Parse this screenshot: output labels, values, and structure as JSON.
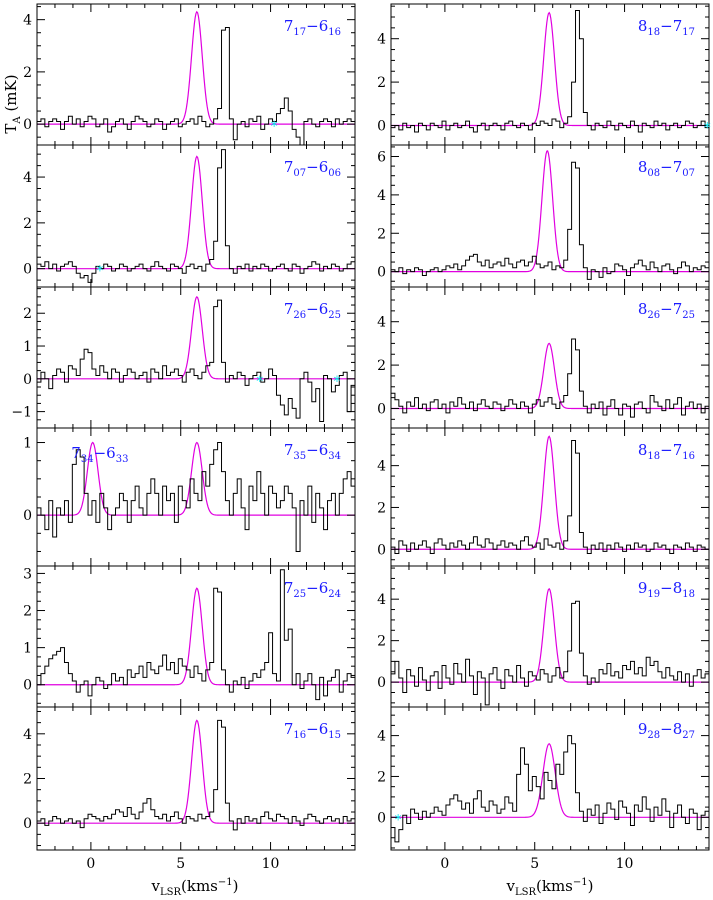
{
  "figure": {
    "y_axis_label": "T",
    "y_axis_label_sub": "A",
    "y_axis_label_unit": " (mK)",
    "x_axis_label": "v",
    "x_axis_label_sub": "LSR",
    "x_axis_label_unit": "(kms",
    "x_axis_label_exp": "−1",
    "x_axis_label_close": ")"
  },
  "colors": {
    "observed": "#000000",
    "fit": "#e000e0",
    "label": "#1a1aff",
    "marker": "#00e5ee"
  },
  "chart_data": [
    {
      "type": "line",
      "transition": {
        "j": "7",
        "js": "17",
        "k": "6",
        "ks": "16"
      },
      "ylim": [
        -0.8,
        4.6
      ],
      "yticks": [
        0,
        2,
        4
      ],
      "xlim": [
        -3,
        14.7
      ],
      "xticks": [
        0,
        5,
        10
      ],
      "fit": {
        "amp": 4.3,
        "center": 5.9,
        "fwhm": 0.7
      },
      "markers": [
        10.2
      ],
      "extra_label": null,
      "y": [
        0.1,
        0.2,
        -0.1,
        0.1,
        0.2,
        0.1,
        -0.2,
        0.1,
        0.3,
        0.0,
        0.2,
        -0.1,
        0.1,
        0.3,
        0.2,
        -0.1,
        0.0,
        0.2,
        -0.3,
        -0.1,
        0.1,
        0.2,
        0.0,
        -0.2,
        0.1,
        0.3,
        0.2,
        0.1,
        -0.1,
        0.0,
        0.2,
        0.1,
        -0.2,
        0.0,
        0.1,
        0.2,
        -0.1,
        0.0,
        0.1,
        0.2,
        0.0,
        0.3,
        0.1,
        -0.1,
        0.0,
        0.2,
        0.6,
        3.6,
        3.7,
        0.2,
        -0.6,
        0.0,
        0.1,
        -0.1,
        0.2,
        0.1,
        0.3,
        -0.2,
        0.0,
        0.2,
        0.1,
        0.4,
        0.6,
        1.0,
        0.5,
        -0.2,
        -0.5,
        -1.0,
        0.1,
        0.2,
        0.0,
        -0.1,
        0.1,
        0.2,
        0.1,
        -0.1,
        0.2,
        0.0,
        0.1,
        0.2,
        0.1
      ]
    },
    {
      "type": "line",
      "transition": {
        "j": "8",
        "js": "18",
        "k": "7",
        "ks": "17"
      },
      "ylim": [
        -0.9,
        5.6
      ],
      "yticks": [
        0,
        2,
        4
      ],
      "xlim": [
        -3,
        14.7
      ],
      "xticks": [
        0,
        5,
        10
      ],
      "fit": {
        "amp": 5.2,
        "center": 5.8,
        "fwhm": 0.7
      },
      "markers": [
        14.6
      ],
      "extra_label": null,
      "y": [
        -0.1,
        0.0,
        -0.2,
        0.1,
        -0.1,
        0.0,
        -0.3,
        0.1,
        0.0,
        -0.2,
        0.1,
        0.0,
        -0.1,
        0.2,
        -0.2,
        0.0,
        0.1,
        -0.1,
        0.0,
        0.2,
        -0.1,
        -0.3,
        0.0,
        0.1,
        -0.2,
        0.0,
        0.1,
        0.0,
        -0.2,
        0.1,
        0.2,
        0.0,
        -0.1,
        0.1,
        0.0,
        -0.2,
        0.1,
        0.0,
        0.2,
        0.1,
        0.0,
        0.3,
        0.2,
        -0.1,
        0.1,
        0.4,
        2.0,
        5.3,
        4.0,
        0.6,
        0.0,
        -0.2,
        0.1,
        0.0,
        -0.1,
        0.2,
        0.0,
        -0.2,
        0.1,
        0.0,
        -0.1,
        0.2,
        0.0,
        -0.3,
        0.1,
        0.0,
        -0.1,
        0.2,
        0.0,
        0.1,
        -0.2,
        0.0,
        0.1,
        -0.1,
        0.0,
        0.2,
        0.1,
        -0.1,
        0.0,
        0.2,
        -0.1
      ]
    },
    {
      "type": "line",
      "transition": {
        "j": "7",
        "js": "07",
        "k": "6",
        "ks": "06"
      },
      "ylim": [
        -0.8,
        5.4
      ],
      "yticks": [
        0,
        2,
        4
      ],
      "xlim": [
        -3,
        14.7
      ],
      "xticks": [
        0,
        5,
        10
      ],
      "fit": {
        "amp": 4.9,
        "center": 5.9,
        "fwhm": 0.7
      },
      "markers": [
        0.5
      ],
      "extra_label": null,
      "y": [
        0.2,
        0.1,
        0.3,
        0.0,
        0.2,
        -0.1,
        0.1,
        0.2,
        0.3,
        0.1,
        -0.2,
        -0.4,
        -0.3,
        -0.6,
        -0.2,
        0.1,
        0.0,
        0.2,
        0.1,
        -0.1,
        0.0,
        0.2,
        0.1,
        -0.1,
        0.0,
        0.1,
        0.2,
        0.0,
        -0.1,
        0.1,
        0.3,
        0.1,
        0.0,
        -0.1,
        0.2,
        0.1,
        0.0,
        -0.2,
        0.1,
        0.2,
        0.0,
        0.1,
        -0.1,
        0.2,
        0.4,
        1.2,
        4.4,
        5.2,
        1.0,
        0.0,
        -0.2,
        0.1,
        0.0,
        0.2,
        -0.1,
        0.1,
        0.0,
        0.2,
        0.1,
        -0.1,
        0.0,
        0.1,
        0.2,
        0.0,
        -0.1,
        0.2,
        0.1,
        -0.2,
        0.0,
        0.1,
        0.3,
        0.2,
        -0.1,
        0.1,
        0.0,
        0.2,
        0.1,
        -0.1,
        0.0,
        0.2,
        0.3
      ]
    },
    {
      "type": "line",
      "transition": {
        "j": "8",
        "js": "08",
        "k": "7",
        "ks": "07"
      },
      "ylim": [
        -0.8,
        6.6
      ],
      "yticks": [
        0,
        2,
        4,
        6
      ],
      "xlim": [
        -3,
        14.7
      ],
      "xticks": [
        0,
        5,
        10
      ],
      "fit": {
        "amp": 6.3,
        "center": 5.7,
        "fwhm": 0.7
      },
      "markers": [],
      "extra_label": null,
      "y": [
        0.1,
        0.0,
        0.2,
        -0.1,
        0.1,
        0.0,
        0.2,
        0.1,
        -0.2,
        0.0,
        0.1,
        0.2,
        0.0,
        0.1,
        0.3,
        0.2,
        0.4,
        0.1,
        0.3,
        0.6,
        0.8,
        0.9,
        0.5,
        0.3,
        0.6,
        0.2,
        0.4,
        0.5,
        0.3,
        0.7,
        0.4,
        0.2,
        0.5,
        0.6,
        0.3,
        0.5,
        0.8,
        0.4,
        0.2,
        0.3,
        0.5,
        0.1,
        0.3,
        0.2,
        0.6,
        2.2,
        5.7,
        5.4,
        1.4,
        0.2,
        -0.4,
        0.1,
        0.0,
        -0.3,
        0.2,
        -0.1,
        0.0,
        0.4,
        0.3,
        0.1,
        -0.2,
        0.2,
        0.4,
        0.6,
        0.3,
        0.1,
        0.5,
        0.2,
        0.0,
        0.3,
        0.4,
        0.1,
        -0.1,
        0.2,
        0.5,
        0.3,
        0.0,
        0.2,
        0.1,
        0.3,
        0.2
      ]
    },
    {
      "type": "line",
      "transition": {
        "j": "7",
        "js": "26",
        "k": "6",
        "ks": "25"
      },
      "ylim": [
        -1.5,
        2.8
      ],
      "yticks": [
        -1,
        0,
        1,
        2
      ],
      "xlim": [
        -3,
        14.7
      ],
      "xticks": [
        0,
        5,
        10
      ],
      "fit": {
        "amp": 2.5,
        "center": 5.9,
        "fwhm": 0.7
      },
      "markers": [
        9.4,
        13.7
      ],
      "extra_label": null,
      "y": [
        -0.1,
        0.2,
        0.0,
        -0.3,
        0.1,
        0.3,
        0.2,
        -0.1,
        0.4,
        0.3,
        0.1,
        0.6,
        0.9,
        0.8,
        0.3,
        0.1,
        0.4,
        0.2,
        0.0,
        0.3,
        0.2,
        -0.1,
        0.1,
        0.3,
        0.2,
        0.0,
        0.1,
        0.2,
        -0.1,
        0.3,
        0.2,
        0.0,
        0.4,
        0.1,
        0.2,
        0.3,
        0.1,
        -0.1,
        0.2,
        0.3,
        0.1,
        0.0,
        0.2,
        0.4,
        0.5,
        2.2,
        2.4,
        0.5,
        -0.1,
        0.1,
        0.0,
        0.2,
        0.1,
        -0.2,
        0.0,
        0.1,
        0.2,
        -0.1,
        0.0,
        0.3,
        0.1,
        -0.5,
        -0.8,
        -1.1,
        -0.6,
        -0.9,
        -1.2,
        0.0,
        0.2,
        -0.1,
        -0.7,
        -0.3,
        -1.3,
        0.1,
        0.0,
        -0.4,
        -0.2,
        0.1,
        0.2,
        -1.0,
        -0.2
      ]
    },
    {
      "type": "line",
      "transition": {
        "j": "8",
        "js": "26",
        "k": "7",
        "ks": "25"
      },
      "ylim": [
        -0.9,
        5.6
      ],
      "yticks": [
        0,
        2,
        4
      ],
      "xlim": [
        -3,
        14.7
      ],
      "xticks": [
        0,
        5,
        10
      ],
      "fit": {
        "amp": 3.0,
        "center": 5.8,
        "fwhm": 0.7
      },
      "markers": [],
      "extra_label": null,
      "y": [
        0.7,
        0.4,
        0.1,
        -0.2,
        0.3,
        0.1,
        0.5,
        0.0,
        0.2,
        -0.1,
        0.3,
        0.4,
        0.0,
        0.2,
        -0.2,
        0.3,
        0.1,
        0.5,
        0.2,
        0.0,
        0.3,
        -0.1,
        0.2,
        0.4,
        0.1,
        0.0,
        0.3,
        0.2,
        -0.1,
        0.1,
        0.4,
        0.2,
        0.0,
        0.3,
        0.1,
        -0.2,
        0.2,
        0.4,
        0.1,
        0.3,
        0.5,
        0.2,
        0.0,
        0.3,
        0.6,
        1.6,
        3.2,
        2.7,
        0.8,
        0.1,
        -0.2,
        0.2,
        0.0,
        0.3,
        -0.3,
        0.1,
        0.4,
        0.0,
        -0.3,
        0.2,
        0.1,
        -0.4,
        0.2,
        0.3,
        0.0,
        -0.2,
        0.6,
        0.3,
        0.1,
        -0.1,
        0.4,
        0.0,
        0.2,
        0.5,
        -0.3,
        0.1,
        0.3,
        0.0,
        0.2,
        -0.2,
        0.1
      ]
    },
    {
      "type": "line",
      "transition": {
        "j": "7",
        "js": "35",
        "k": "6",
        "ks": "34"
      },
      "ylim": [
        -0.7,
        1.2
      ],
      "yticks": [
        0,
        1
      ],
      "xlim": [
        -3,
        14.7
      ],
      "xticks": [
        0,
        5,
        10
      ],
      "fit": {
        "amp": 1.0,
        "center": 5.9,
        "fwhm": 0.7,
        "amp2": 1.0,
        "center2": 0.1
      },
      "markers": [],
      "extra_label": {
        "j": "7",
        "js": "34",
        "k": "6",
        "ks": "33"
      },
      "y": [
        0.1,
        0.0,
        -0.2,
        0.2,
        -0.3,
        0.1,
        0.0,
        0.2,
        -0.1,
        0.7,
        0.9,
        0.8,
        0.3,
        0.0,
        0.2,
        -0.1,
        0.3,
        0.1,
        -0.2,
        0.0,
        0.1,
        0.3,
        0.2,
        -0.1,
        0.2,
        0.4,
        0.1,
        0.0,
        0.3,
        0.5,
        0.3,
        0.0,
        0.4,
        0.2,
        0.3,
        -0.1,
        0.4,
        0.2,
        0.1,
        0.5,
        0.3,
        0.2,
        0.6,
        0.4,
        0.7,
        0.9,
        1.0,
        0.6,
        0.2,
        0.0,
        0.3,
        0.5,
        0.1,
        -0.2,
        0.4,
        0.2,
        0.6,
        0.3,
        0.0,
        0.4,
        0.3,
        0.1,
        0.2,
        0.4,
        0.3,
        0.1,
        -0.5,
        0.2,
        0.0,
        0.4,
        -0.1,
        0.3,
        0.1,
        -0.2,
        0.2,
        0.3,
        0.0,
        0.3,
        0.5,
        0.6,
        0.4
      ]
    },
    {
      "type": "line",
      "transition": {
        "j": "8",
        "js": "18",
        "k": "7",
        "ks": "16"
      },
      "ylim": [
        -0.8,
        5.8
      ],
      "yticks": [
        0,
        2,
        4
      ],
      "xlim": [
        -3,
        14.7
      ],
      "xticks": [
        0,
        5,
        10
      ],
      "fit": {
        "amp": 5.4,
        "center": 5.8,
        "fwhm": 0.7
      },
      "markers": [],
      "extra_label": null,
      "y": [
        0.1,
        -0.2,
        0.4,
        0.2,
        -0.1,
        0.3,
        0.0,
        0.2,
        0.4,
        0.1,
        -0.2,
        0.3,
        0.5,
        0.2,
        0.0,
        0.3,
        0.1,
        0.4,
        0.2,
        0.0,
        0.3,
        0.6,
        0.2,
        0.1,
        0.5,
        0.3,
        0.0,
        0.2,
        0.4,
        0.1,
        0.3,
        0.2,
        0.0,
        0.4,
        0.6,
        0.2,
        0.1,
        0.3,
        0.0,
        0.5,
        0.2,
        0.1,
        0.3,
        0.0,
        0.4,
        1.6,
        5.2,
        4.6,
        0.8,
        0.1,
        -0.2,
        0.2,
        0.0,
        0.3,
        -0.1,
        0.2,
        0.0,
        0.3,
        0.1,
        -0.1,
        0.2,
        0.0,
        0.3,
        0.1,
        0.2,
        -0.1,
        0.0,
        0.3,
        0.1,
        0.2,
        0.0,
        -0.2,
        0.2,
        0.1,
        0.0,
        0.3,
        0.1,
        -0.1,
        0.2,
        0.1,
        0.0
      ]
    },
    {
      "type": "line",
      "transition": {
        "j": "7",
        "js": "25",
        "k": "6",
        "ks": "24"
      },
      "ylim": [
        -0.6,
        3.2
      ],
      "yticks": [
        0,
        1,
        2,
        3
      ],
      "xlim": [
        -3,
        14.7
      ],
      "xticks": [
        0,
        5,
        10
      ],
      "fit": {
        "amp": 2.6,
        "center": 5.9,
        "fwhm": 0.7
      },
      "markers": [],
      "extra_label": null,
      "y": [
        0.0,
        0.3,
        0.5,
        0.7,
        0.8,
        0.9,
        1.0,
        0.6,
        0.3,
        0.1,
        -0.2,
        0.0,
        0.1,
        -0.3,
        0.0,
        0.2,
        0.1,
        -0.1,
        0.0,
        0.3,
        0.1,
        0.2,
        0.0,
        0.4,
        0.2,
        0.3,
        0.5,
        0.2,
        0.6,
        0.4,
        0.3,
        0.5,
        0.8,
        0.4,
        0.6,
        0.3,
        0.7,
        0.5,
        0.4,
        0.2,
        0.5,
        0.3,
        0.1,
        0.4,
        0.6,
        2.6,
        2.5,
        0.4,
        0.0,
        -0.2,
        0.1,
        0.0,
        0.2,
        -0.1,
        0.1,
        0.3,
        0.2,
        0.4,
        0.6,
        1.4,
        0.3,
        0.1,
        3.1,
        1.2,
        1.5,
        0.0,
        0.3,
        -0.1,
        0.1,
        0.3,
        0.0,
        -0.4,
        0.2,
        -0.3,
        0.1,
        0.2,
        0.4,
        -0.2,
        0.1,
        0.3,
        0.2
      ]
    },
    {
      "type": "line",
      "transition": {
        "j": "9",
        "js": "19",
        "k": "8",
        "ks": "18"
      },
      "ylim": [
        -1.2,
        5.6
      ],
      "yticks": [
        0,
        2,
        4
      ],
      "xlim": [
        -3,
        14.7
      ],
      "xticks": [
        0,
        5,
        10
      ],
      "fit": {
        "amp": 4.5,
        "center": 5.8,
        "fwhm": 0.7
      },
      "markers": [],
      "extra_label": null,
      "y": [
        0.4,
        1.0,
        0.2,
        -0.5,
        0.6,
        0.3,
        -0.2,
        0.7,
        0.1,
        -0.4,
        0.3,
        0.5,
        -0.3,
        0.8,
        0.2,
        -0.1,
        0.9,
        0.4,
        0.0,
        1.1,
        0.3,
        -0.6,
        0.5,
        0.2,
        -1.1,
        0.4,
        0.7,
        0.1,
        -0.3,
        0.6,
        0.3,
        0.0,
        0.8,
        0.2,
        -0.2,
        0.5,
        0.3,
        0.1,
        0.6,
        0.4,
        0.0,
        0.3,
        0.7,
        0.2,
        0.5,
        1.5,
        3.8,
        3.9,
        1.4,
        0.3,
        -0.1,
        0.2,
        0.0,
        0.6,
        0.4,
        0.9,
        0.3,
        0.5,
        0.2,
        0.8,
        0.6,
        1.0,
        0.4,
        0.7,
        0.3,
        1.2,
        0.8,
        1.0,
        0.5,
        0.2,
        0.7,
        0.3,
        0.1,
        0.5,
        0.0,
        0.4,
        -0.2,
        0.3,
        0.6,
        0.2,
        0.4
      ]
    },
    {
      "type": "line",
      "transition": {
        "j": "7",
        "js": "16",
        "k": "6",
        "ks": "15"
      },
      "ylim": [
        -1.2,
        5.2
      ],
      "yticks": [
        0,
        2,
        4
      ],
      "xlim": [
        -3,
        14.7
      ],
      "xticks": [
        0,
        5,
        10
      ],
      "fit": {
        "amp": 4.6,
        "center": 5.9,
        "fwhm": 0.7
      },
      "markers": [],
      "extra_label": null,
      "y": [
        0.1,
        0.2,
        -0.1,
        0.1,
        0.3,
        0.2,
        0.0,
        0.1,
        0.2,
        0.0,
        0.1,
        -0.2,
        0.2,
        0.4,
        0.3,
        0.2,
        0.1,
        0.3,
        0.2,
        0.4,
        0.6,
        0.5,
        0.3,
        0.7,
        0.4,
        0.2,
        0.5,
        0.9,
        1.1,
        0.6,
        0.3,
        0.2,
        0.4,
        0.1,
        0.3,
        0.5,
        0.2,
        0.0,
        0.3,
        0.2,
        0.1,
        0.4,
        0.2,
        0.3,
        0.5,
        1.5,
        4.6,
        4.3,
        0.9,
        0.1,
        -0.3,
        0.2,
        0.0,
        0.3,
        0.1,
        0.2,
        0.0,
        0.3,
        0.5,
        0.2,
        0.1,
        0.4,
        0.3,
        0.2,
        0.0,
        0.3,
        0.1,
        -0.1,
        0.2,
        0.4,
        0.3,
        0.1,
        0.0,
        0.2,
        0.3,
        0.1,
        0.2,
        0.0,
        0.3,
        0.1,
        0.2
      ]
    },
    {
      "type": "line",
      "transition": {
        "j": "9",
        "js": "28",
        "k": "8",
        "ks": "27"
      },
      "ylim": [
        -1.6,
        5.4
      ],
      "yticks": [
        0,
        2,
        4
      ],
      "xlim": [
        -3,
        14.7
      ],
      "xticks": [
        0,
        5,
        10
      ],
      "fit": {
        "amp": 3.6,
        "center": 5.8,
        "fwhm": 0.8
      },
      "markers": [
        -2.6
      ],
      "extra_label": null,
      "y": [
        -0.5,
        -1.2,
        -0.6,
        0.1,
        -0.3,
        0.4,
        0.2,
        -0.1,
        0.3,
        0.0,
        0.2,
        0.5,
        0.3,
        0.1,
        0.6,
        0.9,
        1.1,
        0.8,
        0.4,
        0.7,
        0.2,
        0.9,
        1.3,
        0.5,
        0.3,
        0.8,
        0.6,
        0.2,
        0.4,
        1.0,
        0.7,
        0.3,
        2.1,
        3.4,
        2.6,
        1.3,
        2.0,
        1.5,
        0.9,
        2.2,
        1.8,
        1.4,
        2.6,
        2.1,
        3.2,
        4.0,
        3.6,
        1.2,
        0.3,
        -0.2,
        0.4,
        0.1,
        0.6,
        -0.3,
        0.2,
        0.7,
        0.4,
        -0.1,
        0.8,
        0.5,
        0.2,
        -0.4,
        0.6,
        0.3,
        1.0,
        0.4,
        -0.2,
        0.5,
        0.1,
        0.9,
        0.3,
        -0.5,
        0.2,
        0.6,
        0.0,
        -0.3,
        0.4,
        0.2,
        -0.6,
        0.1,
        0.3
      ]
    }
  ]
}
